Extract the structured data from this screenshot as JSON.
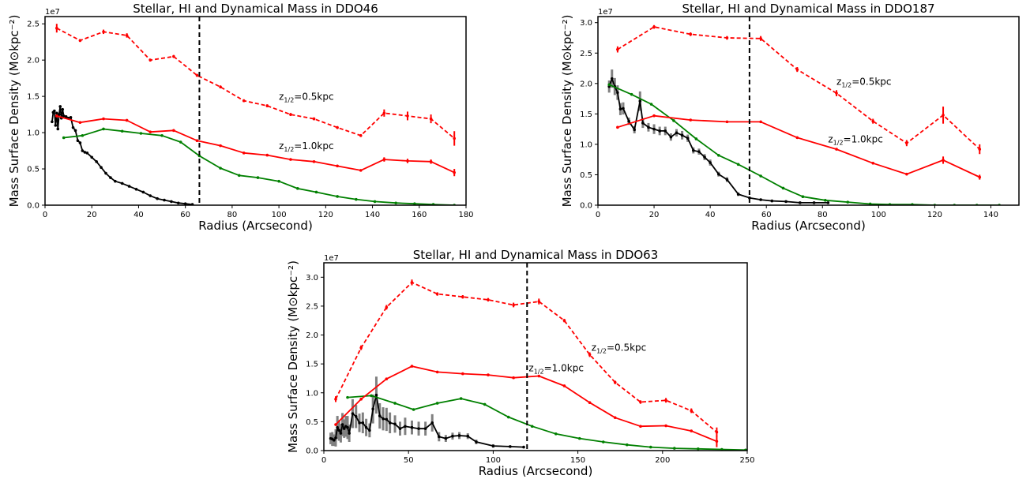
{
  "chart_data": [
    {
      "type": "line",
      "title": "Stellar, HI and Dynamical Mass in DDO46",
      "xlabel": "Radius (Arcsecond)",
      "ylabel": "Mass Surface Density (M⊙kpc⁻²)",
      "y_scale_label": "1e7",
      "xlim": [
        0,
        180
      ],
      "ylim": [
        0,
        2.6
      ],
      "xticks": [
        "0",
        "20",
        "40",
        "60",
        "80",
        "100",
        "120",
        "140",
        "160",
        "180"
      ],
      "xtick_values": [
        0,
        20,
        40,
        60,
        80,
        100,
        120,
        140,
        160,
        180
      ],
      "yticks": [
        "0.0",
        "0.5",
        "1.0",
        "1.5",
        "2.0",
        "2.5"
      ],
      "ytick_values": [
        0,
        0.5,
        1.0,
        1.5,
        2.0,
        2.5
      ],
      "vline_x": 66,
      "annotations": [
        {
          "text": "z1/2=0.5kpc",
          "base": "z",
          "sub": "1/2",
          "rest": "=0.5kpc",
          "x": 100,
          "y": 1.45
        },
        {
          "text": "z1/2=1.0kpc",
          "base": "z",
          "sub": "1/2",
          "rest": "=1.0kpc",
          "x": 100,
          "y": 0.77
        }
      ],
      "series": [
        {
          "style": "red-dashed",
          "color": "#ff0000",
          "dashed": true,
          "x": [
            5,
            15,
            25,
            35,
            45,
            55,
            65,
            75,
            85,
            95,
            105,
            115,
            125,
            135,
            145,
            155,
            165,
            175
          ],
          "y": [
            2.44,
            2.27,
            2.39,
            2.34,
            2.0,
            2.05,
            1.79,
            1.63,
            1.44,
            1.37,
            1.25,
            1.19,
            1.07,
            0.96,
            1.27,
            1.23,
            1.19,
            0.92
          ],
          "err": [
            0.06,
            0.02,
            0.03,
            0.03,
            0.02,
            0.02,
            0.02,
            0.02,
            0.02,
            0.02,
            0.02,
            0.02,
            0.02,
            0.02,
            0.05,
            0.06,
            0.06,
            0.1
          ]
        },
        {
          "style": "red-solid",
          "color": "#ff0000",
          "dashed": false,
          "x": [
            5,
            15,
            25,
            35,
            45,
            55,
            65,
            75,
            85,
            95,
            105,
            115,
            125,
            135,
            145,
            155,
            165,
            175
          ],
          "y": [
            1.23,
            1.14,
            1.19,
            1.17,
            1.01,
            1.03,
            0.89,
            0.82,
            0.72,
            0.69,
            0.63,
            0.6,
            0.54,
            0.48,
            0.63,
            0.61,
            0.6,
            0.45
          ],
          "err": [
            0.02,
            0.01,
            0.01,
            0.01,
            0.01,
            0.01,
            0.01,
            0.01,
            0.01,
            0.01,
            0.01,
            0.01,
            0.01,
            0.01,
            0.03,
            0.03,
            0.03,
            0.05
          ]
        },
        {
          "style": "green",
          "color": "#008000",
          "dashed": false,
          "x": [
            8,
            16,
            25,
            33,
            41,
            50,
            58,
            66,
            75,
            83,
            91,
            100,
            108,
            116,
            125,
            133,
            141,
            150,
            158,
            166,
            175
          ],
          "y": [
            0.93,
            0.96,
            1.05,
            1.02,
            0.99,
            0.96,
            0.87,
            0.68,
            0.51,
            0.41,
            0.38,
            0.33,
            0.23,
            0.18,
            0.12,
            0.08,
            0.05,
            0.03,
            0.02,
            0.01,
            0.0
          ],
          "err": []
        },
        {
          "style": "black",
          "color": "#000000",
          "dashed": false,
          "x": [
            3,
            3.5,
            4,
            4.5,
            5,
            5.5,
            6,
            6.5,
            7,
            7.5,
            8,
            9,
            10,
            11,
            12,
            13,
            14,
            15,
            16,
            17,
            18,
            20,
            22,
            24,
            26,
            28,
            30,
            33,
            36,
            39,
            42,
            45,
            48,
            51,
            54,
            57,
            60,
            63
          ],
          "y": [
            1.15,
            1.28,
            1.3,
            1.1,
            1.27,
            1.05,
            1.25,
            1.36,
            1.2,
            1.32,
            1.23,
            1.22,
            1.2,
            1.21,
            1.07,
            1.03,
            0.89,
            0.86,
            0.75,
            0.73,
            0.72,
            0.66,
            0.6,
            0.52,
            0.44,
            0.38,
            0.33,
            0.3,
            0.26,
            0.22,
            0.18,
            0.13,
            0.09,
            0.07,
            0.05,
            0.03,
            0.02,
            0.01
          ],
          "err": []
        }
      ]
    },
    {
      "type": "line",
      "title": "Stellar, HI and Dynamical Mass in DDO187",
      "xlabel": "Radius (Arcsecond)",
      "ylabel": "Mass Surface Density (M⊙kpc⁻²)",
      "y_scale_label": "1e7",
      "xlim": [
        0,
        150
      ],
      "ylim": [
        0,
        3.1
      ],
      "xticks": [
        "0",
        "20",
        "40",
        "60",
        "80",
        "100",
        "120",
        "140"
      ],
      "xtick_values": [
        0,
        20,
        40,
        60,
        80,
        100,
        120,
        140
      ],
      "yticks": [
        "0.0",
        "0.5",
        "1.0",
        "1.5",
        "2.0",
        "2.5",
        "3.0"
      ],
      "ytick_values": [
        0,
        0.5,
        1.0,
        1.5,
        2.0,
        2.5,
        3.0
      ],
      "vline_x": 54,
      "annotations": [
        {
          "text": "z1/2=0.5kpc",
          "base": "z",
          "sub": "1/2",
          "rest": "=0.5kpc",
          "x": 85,
          "y": 1.98
        },
        {
          "text": "z1/2=1.0kpc",
          "base": "z",
          "sub": "1/2",
          "rest": "=1.0kpc",
          "x": 82,
          "y": 1.03
        }
      ],
      "series": [
        {
          "style": "red-dashed",
          "color": "#ff0000",
          "dashed": true,
          "x": [
            7,
            20,
            33,
            46,
            58,
            71,
            85,
            98,
            110,
            123,
            136
          ],
          "y": [
            2.56,
            2.93,
            2.81,
            2.75,
            2.74,
            2.23,
            1.84,
            1.38,
            1.02,
            1.48,
            0.92
          ],
          "err": [
            0.05,
            0.03,
            0.03,
            0.03,
            0.04,
            0.04,
            0.05,
            0.04,
            0.05,
            0.14,
            0.08
          ]
        },
        {
          "style": "red-solid",
          "color": "#ff0000",
          "dashed": false,
          "x": [
            7,
            20,
            33,
            46,
            58,
            71,
            85,
            98,
            110,
            123,
            136
          ],
          "y": [
            1.28,
            1.47,
            1.4,
            1.37,
            1.37,
            1.11,
            0.92,
            0.69,
            0.51,
            0.74,
            0.46
          ],
          "err": [
            0.02,
            0.02,
            0.02,
            0.02,
            0.02,
            0.02,
            0.02,
            0.02,
            0.02,
            0.06,
            0.04
          ]
        },
        {
          "style": "green",
          "color": "#008000",
          "dashed": false,
          "x": [
            4,
            12,
            19,
            27,
            35,
            43,
            50,
            58,
            66,
            73,
            81,
            89,
            97,
            104,
            112,
            120,
            127,
            135,
            143
          ],
          "y": [
            1.98,
            1.82,
            1.66,
            1.39,
            1.09,
            0.82,
            0.67,
            0.48,
            0.28,
            0.14,
            0.08,
            0.05,
            0.02,
            0.01,
            0.01,
            0.0,
            0.0,
            0.0,
            0.0
          ],
          "err": []
        },
        {
          "style": "black",
          "color": "#000000",
          "dashed": false,
          "x": [
            4,
            5,
            6,
            7,
            8,
            9,
            11,
            13,
            15,
            16,
            18,
            20,
            22,
            24,
            26,
            28,
            30,
            32,
            34,
            36,
            38,
            40,
            43,
            46,
            50,
            54,
            58,
            62,
            67,
            72,
            77,
            82
          ],
          "y": [
            1.95,
            2.08,
            1.95,
            1.85,
            1.58,
            1.59,
            1.38,
            1.24,
            1.71,
            1.35,
            1.28,
            1.25,
            1.22,
            1.22,
            1.12,
            1.19,
            1.15,
            1.1,
            0.9,
            0.88,
            0.79,
            0.7,
            0.51,
            0.42,
            0.18,
            0.12,
            0.09,
            0.07,
            0.06,
            0.04,
            0.04,
            0.04
          ],
          "err": [
            0.1,
            0.15,
            0.14,
            0.12,
            0.1,
            0.1,
            0.06,
            0.06,
            0.16,
            0.08,
            0.07,
            0.08,
            0.07,
            0.07,
            0.06,
            0.06,
            0.07,
            0.06,
            0.05,
            0.05,
            0.05,
            0.05,
            0.04,
            0.04,
            0.03,
            0.02,
            0.02,
            0.02,
            0.02,
            0.02,
            0.02,
            0.02
          ]
        }
      ]
    },
    {
      "type": "line",
      "title": "Stellar, HI and Dynamical Mass in DDO63",
      "xlabel": "Radius (Arcsecond)",
      "ylabel": "Mass Surface Density (M⊙kpc⁻²)",
      "y_scale_label": "1e7",
      "xlim": [
        0,
        250
      ],
      "ylim": [
        0,
        3.25
      ],
      "xticks": [
        "0",
        "50",
        "100",
        "150",
        "200",
        "250"
      ],
      "xtick_values": [
        0,
        50,
        100,
        150,
        200,
        250
      ],
      "yticks": [
        "0.0",
        "0.5",
        "1.0",
        "1.5",
        "2.0",
        "2.5",
        "3.0"
      ],
      "ytick_values": [
        0,
        0.5,
        1.0,
        1.5,
        2.0,
        2.5,
        3.0
      ],
      "vline_x": 120,
      "annotations": [
        {
          "text": "z1/2=0.5kpc",
          "base": "z",
          "sub": "1/2",
          "rest": "=0.5kpc",
          "x": 158,
          "y": 1.73
        },
        {
          "text": "z1/2=1.0kpc",
          "base": "z",
          "sub": "1/2",
          "rest": "=1.0kpc",
          "x": 121,
          "y": 1.37
        }
      ],
      "series": [
        {
          "style": "red-dashed",
          "color": "#ff0000",
          "dashed": true,
          "x": [
            7,
            22,
            37,
            52,
            67,
            82,
            97,
            112,
            127,
            142,
            157,
            172,
            187,
            202,
            217,
            232
          ],
          "y": [
            0.89,
            1.78,
            2.48,
            2.91,
            2.71,
            2.66,
            2.61,
            2.52,
            2.58,
            2.25,
            1.66,
            1.18,
            0.84,
            0.87,
            0.69,
            0.32
          ],
          "err": [
            0.05,
            0.04,
            0.04,
            0.05,
            0.03,
            0.03,
            0.03,
            0.04,
            0.05,
            0.03,
            0.04,
            0.03,
            0.03,
            0.04,
            0.04,
            0.08
          ]
        },
        {
          "style": "red-solid",
          "color": "#ff0000",
          "dashed": false,
          "x": [
            7,
            22,
            37,
            52,
            67,
            82,
            97,
            112,
            127,
            142,
            157,
            172,
            187,
            202,
            217,
            232
          ],
          "y": [
            0.45,
            0.89,
            1.24,
            1.46,
            1.36,
            1.33,
            1.31,
            1.26,
            1.29,
            1.12,
            0.83,
            0.57,
            0.42,
            0.43,
            0.34,
            0.16
          ],
          "err": [
            0.02,
            0.02,
            0.02,
            0.02,
            0.02,
            0.02,
            0.02,
            0.02,
            0.02,
            0.02,
            0.02,
            0.02,
            0.02,
            0.02,
            0.02,
            0.1
          ]
        },
        {
          "style": "green",
          "color": "#008000",
          "dashed": false,
          "x": [
            14,
            28,
            42,
            53,
            67,
            81,
            95,
            109,
            123,
            137,
            151,
            165,
            179,
            193,
            207,
            221,
            235,
            249
          ],
          "y": [
            0.92,
            0.95,
            0.82,
            0.71,
            0.82,
            0.9,
            0.8,
            0.58,
            0.42,
            0.29,
            0.21,
            0.15,
            0.1,
            0.06,
            0.04,
            0.03,
            0.02,
            0.01
          ],
          "err": []
        },
        {
          "style": "black",
          "color": "#000000",
          "dashed": false,
          "x": [
            4,
            5,
            6,
            7,
            8,
            9,
            10,
            11,
            12,
            13,
            14,
            15,
            17,
            19,
            21,
            23,
            25,
            27,
            29,
            31,
            33,
            35,
            37,
            39,
            42,
            45,
            48,
            52,
            56,
            60,
            64,
            68,
            72,
            76,
            80,
            85,
            90,
            100,
            110,
            118
          ],
          "y": [
            0.21,
            0.2,
            0.18,
            0.22,
            0.4,
            0.35,
            0.3,
            0.45,
            0.38,
            0.42,
            0.4,
            0.3,
            0.64,
            0.59,
            0.48,
            0.48,
            0.4,
            0.35,
            0.72,
            0.96,
            0.6,
            0.55,
            0.54,
            0.48,
            0.46,
            0.38,
            0.42,
            0.4,
            0.38,
            0.38,
            0.48,
            0.24,
            0.21,
            0.25,
            0.26,
            0.25,
            0.15,
            0.08,
            0.07,
            0.06
          ],
          "err": [
            0.1,
            0.12,
            0.1,
            0.15,
            0.2,
            0.18,
            0.16,
            0.2,
            0.16,
            0.18,
            0.2,
            0.15,
            0.25,
            0.2,
            0.16,
            0.18,
            0.15,
            0.12,
            0.25,
            0.32,
            0.22,
            0.2,
            0.2,
            0.18,
            0.15,
            0.12,
            0.15,
            0.12,
            0.12,
            0.12,
            0.15,
            0.08,
            0.06,
            0.06,
            0.06,
            0.05,
            0.04,
            0.03,
            0.02,
            0.02
          ]
        }
      ]
    }
  ]
}
